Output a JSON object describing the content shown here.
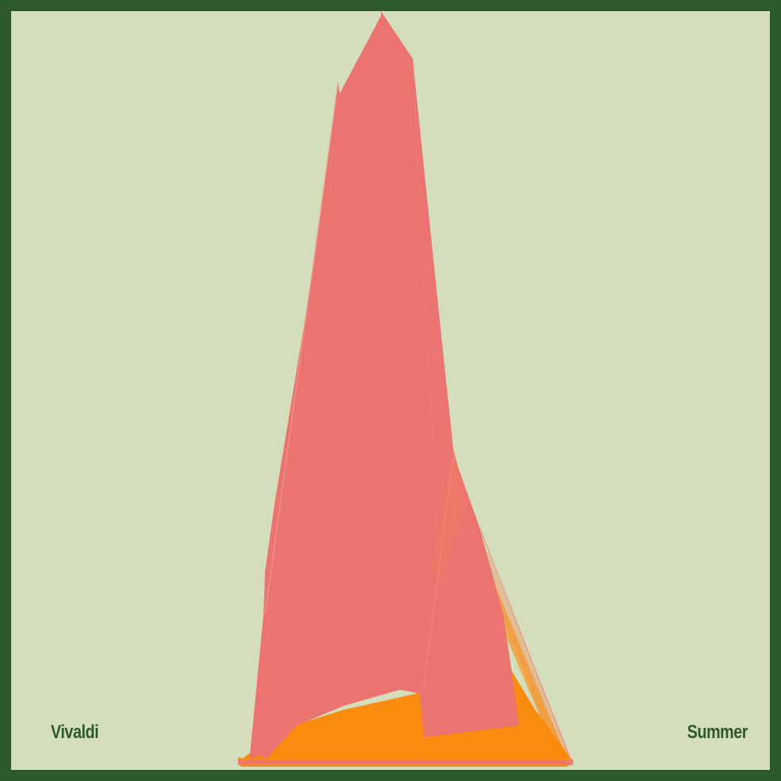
{
  "artist": "Vivaldi",
  "title": "Summer",
  "colors": {
    "border": "#2d5a2d",
    "background": "#d4ddbc",
    "primary_shape": "#ec7470",
    "secondary_shape": "#f98b0e",
    "label_text": "#2d5a2d"
  }
}
